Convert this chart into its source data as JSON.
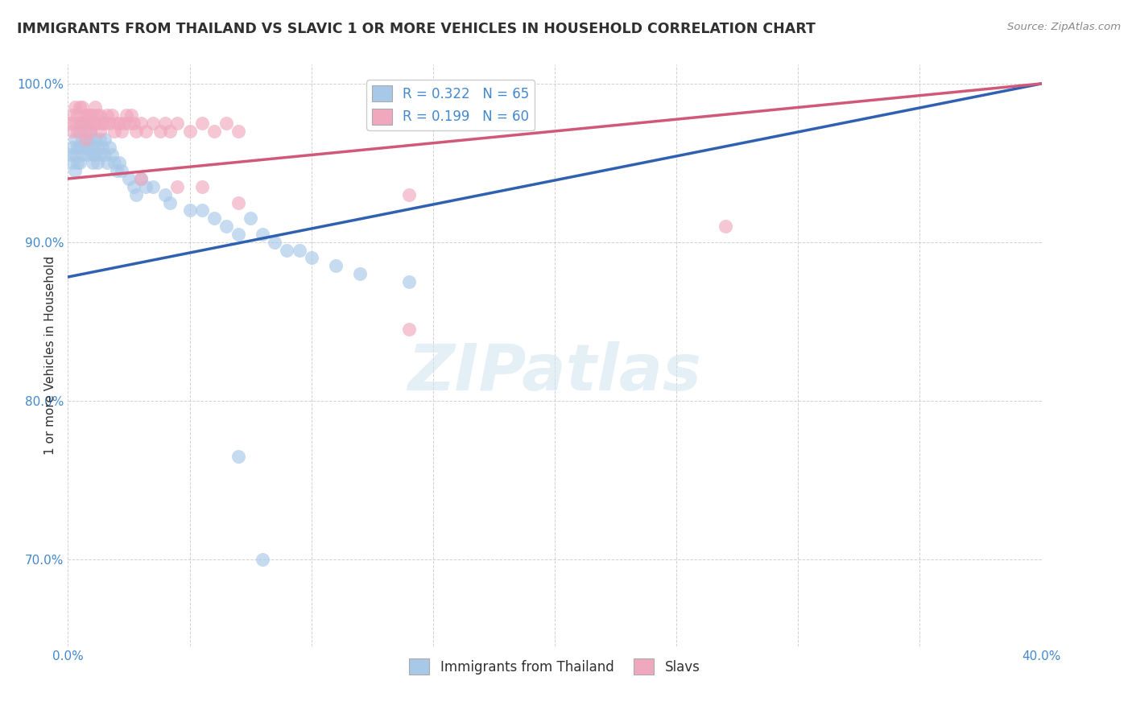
{
  "title": "IMMIGRANTS FROM THAILAND VS SLAVIC 1 OR MORE VEHICLES IN HOUSEHOLD CORRELATION CHART",
  "source": "Source: ZipAtlas.com",
  "ylabel": "1 or more Vehicles in Household",
  "xlim": [
    0.0,
    0.4
  ],
  "ylim": [
    0.645,
    1.012
  ],
  "xticks": [
    0.0,
    0.05,
    0.1,
    0.15,
    0.2,
    0.25,
    0.3,
    0.35,
    0.4
  ],
  "xtick_labels": [
    "0.0%",
    "",
    "",
    "",
    "",
    "",
    "",
    "",
    "40.0%"
  ],
  "ytick_labels": [
    "70.0%",
    "80.0%",
    "90.0%",
    "100.0%"
  ],
  "yticks": [
    0.7,
    0.8,
    0.9,
    1.0
  ],
  "legend_r_blue": "R = 0.322",
  "legend_n_blue": "N = 65",
  "legend_r_pink": "R = 0.199",
  "legend_n_pink": "N = 60",
  "blue_color": "#a8c8e8",
  "pink_color": "#f0a8be",
  "blue_line_color": "#3060b0",
  "pink_line_color": "#d05878",
  "title_color": "#303030",
  "axis_color": "#4488cc",
  "blue_scatter_x": [
    0.001,
    0.002,
    0.002,
    0.003,
    0.003,
    0.003,
    0.004,
    0.004,
    0.005,
    0.005,
    0.005,
    0.006,
    0.006,
    0.006,
    0.007,
    0.007,
    0.007,
    0.008,
    0.008,
    0.008,
    0.009,
    0.009,
    0.01,
    0.01,
    0.01,
    0.011,
    0.011,
    0.012,
    0.012,
    0.013,
    0.013,
    0.014,
    0.015,
    0.015,
    0.016,
    0.017,
    0.018,
    0.019,
    0.02,
    0.021,
    0.022,
    0.025,
    0.027,
    0.028,
    0.03,
    0.032,
    0.035,
    0.04,
    0.042,
    0.05,
    0.055,
    0.06,
    0.065,
    0.07,
    0.075,
    0.08,
    0.085,
    0.09,
    0.095,
    0.1,
    0.11,
    0.12,
    0.14,
    0.07,
    0.08
  ],
  "blue_scatter_y": [
    0.955,
    0.96,
    0.95,
    0.965,
    0.955,
    0.945,
    0.96,
    0.95,
    0.97,
    0.96,
    0.95,
    0.975,
    0.965,
    0.955,
    0.975,
    0.965,
    0.96,
    0.965,
    0.96,
    0.955,
    0.97,
    0.965,
    0.96,
    0.955,
    0.95,
    0.965,
    0.955,
    0.96,
    0.95,
    0.965,
    0.955,
    0.96,
    0.965,
    0.955,
    0.95,
    0.96,
    0.955,
    0.95,
    0.945,
    0.95,
    0.945,
    0.94,
    0.935,
    0.93,
    0.94,
    0.935,
    0.935,
    0.93,
    0.925,
    0.92,
    0.92,
    0.915,
    0.91,
    0.905,
    0.915,
    0.905,
    0.9,
    0.895,
    0.895,
    0.89,
    0.885,
    0.88,
    0.875,
    0.765,
    0.7
  ],
  "pink_scatter_x": [
    0.001,
    0.002,
    0.002,
    0.003,
    0.003,
    0.004,
    0.004,
    0.005,
    0.005,
    0.006,
    0.006,
    0.007,
    0.007,
    0.007,
    0.008,
    0.008,
    0.009,
    0.009,
    0.01,
    0.01,
    0.011,
    0.011,
    0.012,
    0.012,
    0.013,
    0.013,
    0.014,
    0.015,
    0.016,
    0.017,
    0.018,
    0.019,
    0.02,
    0.021,
    0.022,
    0.023,
    0.024,
    0.025,
    0.026,
    0.027,
    0.028,
    0.03,
    0.032,
    0.035,
    0.038,
    0.04,
    0.042,
    0.045,
    0.05,
    0.055,
    0.06,
    0.065,
    0.07,
    0.14,
    0.27,
    0.14,
    0.07,
    0.03,
    0.045,
    0.055
  ],
  "pink_scatter_y": [
    0.975,
    0.98,
    0.97,
    0.985,
    0.975,
    0.98,
    0.97,
    0.985,
    0.975,
    0.985,
    0.975,
    0.98,
    0.97,
    0.965,
    0.98,
    0.975,
    0.98,
    0.97,
    0.98,
    0.975,
    0.985,
    0.975,
    0.98,
    0.975,
    0.98,
    0.97,
    0.975,
    0.975,
    0.98,
    0.975,
    0.98,
    0.97,
    0.975,
    0.975,
    0.97,
    0.975,
    0.98,
    0.975,
    0.98,
    0.975,
    0.97,
    0.975,
    0.97,
    0.975,
    0.97,
    0.975,
    0.97,
    0.975,
    0.97,
    0.975,
    0.97,
    0.975,
    0.97,
    0.845,
    0.91,
    0.93,
    0.925,
    0.94,
    0.935,
    0.935
  ],
  "blue_trend_x": [
    0.0,
    0.4
  ],
  "blue_trend_y": [
    0.878,
    1.0
  ],
  "pink_trend_x": [
    0.0,
    0.4
  ],
  "pink_trend_y": [
    0.94,
    1.0
  ]
}
